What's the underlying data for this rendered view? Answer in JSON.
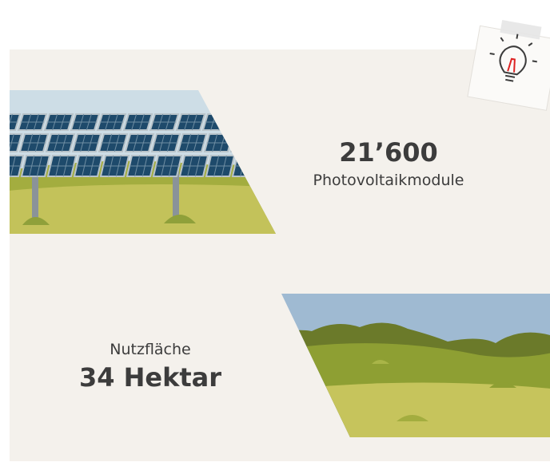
{
  "facts": [
    {
      "value": "21’600",
      "label": "Photovoltaikmodule"
    },
    {
      "label": "Nutzfläche",
      "value": "34 Hektar"
    }
  ]
}
